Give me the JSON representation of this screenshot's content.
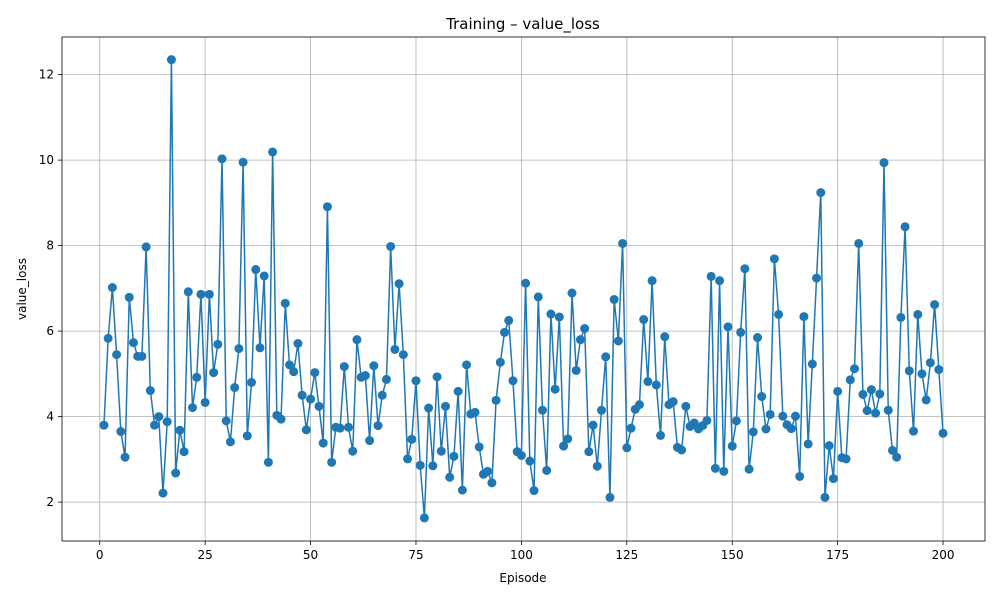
{
  "chart_data": {
    "type": "line",
    "title": "Training – value_loss",
    "xlabel": "Episode",
    "ylabel": "value_loss",
    "xlim": [
      -8.95,
      209.95
    ],
    "ylim": [
      1.09,
      12.88
    ],
    "xticks": [
      0,
      25,
      50,
      75,
      100,
      125,
      150,
      175,
      200
    ],
    "yticks": [
      2,
      4,
      6,
      8,
      10,
      12
    ],
    "grid": true,
    "colors": {
      "series": "#1f77b4"
    },
    "series": [
      {
        "marker": "circle",
        "x": [
          1,
          2,
          3,
          4,
          5,
          6,
          7,
          8,
          9,
          10,
          11,
          12,
          13,
          14,
          15,
          16,
          17,
          18,
          19,
          20,
          21,
          22,
          23,
          24,
          25,
          26,
          27,
          28,
          29,
          30,
          31,
          32,
          33,
          34,
          35,
          36,
          37,
          38,
          39,
          40,
          41,
          42,
          43,
          44,
          45,
          46,
          47,
          48,
          49,
          50,
          51,
          52,
          53,
          54,
          55,
          56,
          57,
          58,
          59,
          60,
          61,
          62,
          63,
          64,
          65,
          66,
          67,
          68,
          69,
          70,
          71,
          72,
          73,
          74,
          75,
          76,
          77,
          78,
          79,
          80,
          81,
          82,
          83,
          84,
          85,
          86,
          87,
          88,
          89,
          90,
          91,
          92,
          93,
          94,
          95,
          96,
          97,
          98,
          99,
          100,
          101,
          102,
          103,
          104,
          105,
          106,
          107,
          108,
          109,
          110,
          111,
          112,
          113,
          114,
          115,
          116,
          117,
          118,
          119,
          120,
          121,
          122,
          123,
          124,
          125,
          126,
          127,
          128,
          129,
          130,
          131,
          132,
          133,
          134,
          135,
          136,
          137,
          138,
          139,
          140,
          141,
          142,
          143,
          144,
          145,
          146,
          147,
          148,
          149,
          150,
          151,
          152,
          153,
          154,
          155,
          156,
          157,
          158,
          159,
          160,
          161,
          162,
          163,
          164,
          165,
          166,
          167,
          168,
          169,
          170,
          171,
          172,
          173,
          174,
          175,
          176,
          177,
          178,
          179,
          180,
          181,
          182,
          183,
          184,
          185,
          186,
          187,
          188,
          189,
          190,
          191,
          192,
          193,
          194,
          195,
          196,
          197,
          198,
          199,
          200
        ],
        "y": [
          3.8,
          5.83,
          7.02,
          5.45,
          3.65,
          3.05,
          6.79,
          5.73,
          5.41,
          5.41,
          7.97,
          4.61,
          3.8,
          4.0,
          2.21,
          3.88,
          12.35,
          2.68,
          3.68,
          3.18,
          6.92,
          4.21,
          4.92,
          6.86,
          4.33,
          6.86,
          5.03,
          5.69,
          10.03,
          3.9,
          3.41,
          4.68,
          5.59,
          9.95,
          3.55,
          4.8,
          7.44,
          5.61,
          7.29,
          2.93,
          10.19,
          4.03,
          3.94,
          6.65,
          5.21,
          5.05,
          5.71,
          4.5,
          3.69,
          4.41,
          5.03,
          4.24,
          3.38,
          8.91,
          2.93,
          3.75,
          3.73,
          5.17,
          3.75,
          3.19,
          5.8,
          4.92,
          4.96,
          3.44,
          5.19,
          3.79,
          4.5,
          4.87,
          7.98,
          5.57,
          7.11,
          5.45,
          3.01,
          3.47,
          4.84,
          2.86,
          1.63,
          4.2,
          2.85,
          4.93,
          3.19,
          4.24,
          2.58,
          3.07,
          4.59,
          2.28,
          5.21,
          4.06,
          4.1,
          3.29,
          2.65,
          2.72,
          2.45,
          4.38,
          5.27,
          5.97,
          6.25,
          4.84,
          3.18,
          3.09,
          7.12,
          2.96,
          2.27,
          6.8,
          4.15,
          2.74,
          6.4,
          4.64,
          6.33,
          3.31,
          3.48,
          6.89,
          5.08,
          5.8,
          6.06,
          3.18,
          3.8,
          2.84,
          4.15,
          5.4,
          2.11,
          6.74,
          5.77,
          8.05,
          3.27,
          3.73,
          4.17,
          4.28,
          6.27,
          4.82,
          7.18,
          4.74,
          3.56,
          5.87,
          4.28,
          4.35,
          3.28,
          3.22,
          4.24,
          3.77,
          3.85,
          3.71,
          3.79,
          3.91,
          7.28,
          2.79,
          7.18,
          2.72,
          6.1,
          3.31,
          3.9,
          5.97,
          7.46,
          2.77,
          3.64,
          5.85,
          4.47,
          3.71,
          4.05,
          7.69,
          6.39,
          4.01,
          3.81,
          3.72,
          4.01,
          2.6,
          6.34,
          3.36,
          5.23,
          7.24,
          9.24,
          2.11,
          3.32,
          2.55,
          4.59,
          3.04,
          3.01,
          4.86,
          5.12,
          8.05,
          4.52,
          4.14,
          4.63,
          4.08,
          4.53,
          9.94,
          4.15,
          3.21,
          3.05,
          6.32,
          8.44,
          5.07,
          3.66,
          6.39,
          5.0,
          4.39,
          5.26,
          6.62,
          5.1,
          3.61
        ]
      }
    ]
  }
}
